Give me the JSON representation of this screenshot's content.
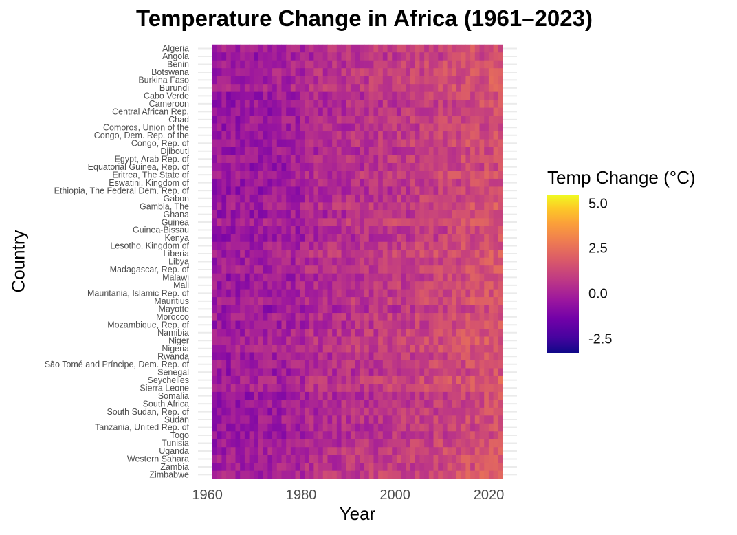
{
  "chart_data": {
    "type": "heatmap",
    "title": "Temperature Change in Africa (1961–2023)",
    "xlabel": "Year",
    "ylabel": "Country",
    "x_range": [
      1961,
      2023
    ],
    "xlim": [
      1958,
      2026
    ],
    "x_ticks": [
      1960,
      1980,
      2000,
      2020
    ],
    "countries": [
      "Algeria",
      "Angola",
      "Benin",
      "Botswana",
      "Burkina Faso",
      "Burundi",
      "Cabo Verde",
      "Cameroon",
      "Central African Rep.",
      "Chad",
      "Comoros, Union of the",
      "Congo, Dem. Rep. of the",
      "Congo, Rep. of",
      "Djibouti",
      "Egypt, Arab Rep. of",
      "Equatorial Guinea, Rep. of",
      "Eritrea, The State of",
      "Eswatini, Kingdom of",
      "Ethiopia, The Federal Dem. Rep. of",
      "Gabon",
      "Gambia, The",
      "Ghana",
      "Guinea",
      "Guinea-Bissau",
      "Kenya",
      "Lesotho, Kingdom of",
      "Liberia",
      "Libya",
      "Madagascar, Rep. of",
      "Malawi",
      "Mali",
      "Mauritania, Islamic Rep. of",
      "Mauritius",
      "Mayotte",
      "Morocco",
      "Mozambique, Rep. of",
      "Namibia",
      "Niger",
      "Nigeria",
      "Rwanda",
      "São Tomé and Príncipe, Dem. Rep. of",
      "Senegal",
      "Seychelles",
      "Sierra Leone",
      "Somalia",
      "South Africa",
      "South Sudan, Rep. of",
      "Sudan",
      "Tanzania, United Rep. of",
      "Togo",
      "Tunisia",
      "Uganda",
      "Western Sahara",
      "Zambia",
      "Zimbabwe"
    ],
    "legend": {
      "title": "Temp Change (°C)",
      "ticks": [
        5.0,
        2.5,
        0.0,
        -2.5
      ],
      "tick_labels": [
        "5.0",
        "2.5",
        "0.0",
        "-2.5"
      ],
      "range": [
        -3.3,
        5.5
      ],
      "colormap": "plasma",
      "placement": "right"
    },
    "grid": true,
    "value_trend": {
      "start_mean": -0.1,
      "end_mean": 1.5
    }
  },
  "colors": {
    "background": "#ffffff",
    "grid": "#ebebeb",
    "plasma": [
      "#0d0887",
      "#46039f",
      "#7201a8",
      "#9c179e",
      "#bd3786",
      "#d8576b",
      "#ed7953",
      "#fb9f3a",
      "#fdca26",
      "#f0f921"
    ]
  }
}
